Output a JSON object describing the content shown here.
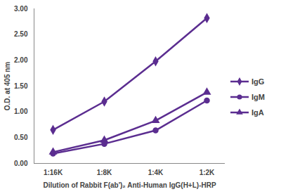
{
  "chart_data": {
    "type": "line",
    "x_label": "Dilution of Rabbit F(ab')₂ Anti-Human IgG(H+L)-HRP",
    "y_label": "O.D. at 405 nm",
    "categories": [
      "1:16K",
      "1:8K",
      "1:4K",
      "1:2K"
    ],
    "series": [
      {
        "name": "IgG",
        "color": "#5b2d90",
        "marker": "diamond",
        "values": [
          0.65,
          1.2,
          1.98,
          2.82
        ]
      },
      {
        "name": "IgM",
        "color": "#5b2d90",
        "marker": "circle",
        "values": [
          0.19,
          0.38,
          0.64,
          1.22
        ]
      },
      {
        "name": "IgA",
        "color": "#5b2d90",
        "marker": "triangle",
        "values": [
          0.22,
          0.45,
          0.83,
          1.38
        ]
      }
    ],
    "ylim": [
      0,
      3
    ],
    "yticks": [
      {
        "value": 0,
        "label": "0.00"
      },
      {
        "value": 0.5,
        "label": "0.50"
      },
      {
        "value": 1,
        "label": "1.00"
      },
      {
        "value": 1.5,
        "label": "1.50"
      },
      {
        "value": 2,
        "label": "2.00"
      },
      {
        "value": 2.5,
        "label": "2.50"
      },
      {
        "value": 3,
        "label": "3.00"
      }
    ],
    "grid": false,
    "legend": "right"
  }
}
